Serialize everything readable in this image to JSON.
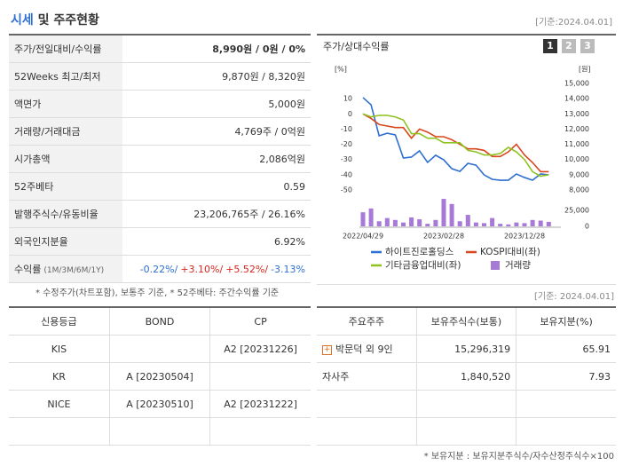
{
  "header": {
    "title_main": "시세",
    "title_rest": "및 주주현황",
    "date": "[기준:2024.04.01]"
  },
  "quote_table": {
    "rows": [
      [
        "주가/전일대비/수익률",
        "8,990원 / 0원 / 0%"
      ],
      [
        "52Weeks 최고/최저",
        "9,870원 / 8,320원"
      ],
      [
        "액면가",
        "5,000원"
      ],
      [
        "거래량/거래대금",
        "4,769주 / 0억원"
      ],
      [
        "시가총액",
        "2,086억원"
      ],
      [
        "52주베타",
        "0.59"
      ],
      [
        "발행주식수/유동비율",
        "23,206,765주 / 26.16%"
      ],
      [
        "외국인지분율",
        "6.92%"
      ]
    ],
    "returns": {
      "label": "수익률",
      "sub": "(1M/3M/6M/1Y)",
      "values": [
        "-0.22%/",
        "+3.10%/",
        "+5.52%/",
        "-3.13%"
      ]
    },
    "note": "* 수정주가(차트포함), 보통주 기준, * 52주베타: 주간수익률 기준"
  },
  "chart_panel": {
    "buttons": [
      "1",
      "2",
      "3"
    ],
    "date": "[기준: 2024.04.01]"
  },
  "chart_data": {
    "type": "line",
    "title": "주가/상대수익률",
    "y_label": "[%]",
    "y2_label": "[원]",
    "categories": [
      "2022/04/29",
      null,
      null,
      null,
      null,
      null,
      null,
      null,
      null,
      null,
      "2023/02/28",
      null,
      null,
      null,
      null,
      null,
      null,
      null,
      null,
      null,
      "2023/12/28",
      null,
      null,
      null
    ],
    "ylim": [
      -50,
      20
    ],
    "yticks": [
      10,
      0,
      -10,
      -20,
      -30,
      -40,
      -50
    ],
    "y2lim": [
      8000,
      15000
    ],
    "y2ticks": [
      {
        "value": 15000,
        "label": "15,000"
      },
      {
        "value": 14000,
        "label": "14,000"
      },
      {
        "value": 13000,
        "label": "13,000"
      },
      {
        "value": 12000,
        "label": "12,000"
      },
      {
        "value": 11000,
        "label": "11,000"
      },
      {
        "value": 10000,
        "label": "10,000"
      },
      {
        "value": 9000,
        "label": "9,000"
      },
      {
        "value": 8000,
        "label": "8,000"
      }
    ],
    "volume_ylim": [
      0,
      25000
    ],
    "volume_yticks": [
      {
        "value": 25000,
        "label": "25,000"
      },
      0
    ],
    "series": [
      {
        "name": "하이트진로홀딩스",
        "color": "#2e6fd0",
        "axis": "y2",
        "values": [
          14070,
          13600,
          11560,
          11730,
          11620,
          10100,
          10160,
          10570,
          9810,
          10280,
          9980,
          9400,
          9220,
          9750,
          9630,
          8990,
          8700,
          8640,
          8640,
          9050,
          8820,
          8640,
          9050,
          8990
        ]
      },
      {
        "name": "KOSPI대비(좌)",
        "color": "#d9461e",
        "values": [
          0,
          -3,
          -7,
          -8,
          -9,
          -9,
          -16,
          -10,
          -12,
          -15,
          -15,
          -17,
          -20,
          -23,
          -23,
          -24,
          -28,
          -28,
          -25,
          -20,
          -27,
          -32,
          -38,
          -38
        ]
      },
      {
        "name": "기타금융업대비(좌)",
        "color": "#8ec21f",
        "values": [
          0,
          -2,
          -1,
          -1,
          -2,
          -4,
          -13,
          -13,
          -16,
          -16,
          -19,
          -19,
          -19,
          -24,
          -25,
          -27,
          -27,
          -26,
          -22,
          -25,
          -30,
          -38,
          -41,
          -40
        ]
      },
      {
        "name": "거래량",
        "color": "#a77ad8",
        "type": "bar",
        "axis": "volume",
        "values": [
          22000,
          28000,
          8000,
          13000,
          10000,
          6000,
          14000,
          11000,
          4000,
          10000,
          43000,
          35000,
          8000,
          18000,
          6000,
          5000,
          13000,
          4000,
          3000,
          6000,
          5000,
          10000,
          9000,
          7000
        ]
      }
    ]
  },
  "credit_table": {
    "headers": [
      "신용등급",
      "BOND",
      "CP"
    ],
    "rows": [
      [
        "KIS",
        null,
        "A2 [20231226]"
      ],
      [
        "KR",
        "A [20230504]",
        null
      ],
      [
        "NICE",
        "A [20230510]",
        "A2 [20231222]"
      ]
    ]
  },
  "holder_table": {
    "headers": [
      "주요주주",
      "보유주식수(보통)",
      "보유지분(%)"
    ],
    "rows": [
      [
        "박문덕 외 9인",
        "15,296,319",
        "65.91"
      ],
      [
        "자사주",
        "1,840,520",
        "7.93"
      ]
    ],
    "note": "* 보유지분 : 보유지분주식수/자수산정주식수×100"
  }
}
